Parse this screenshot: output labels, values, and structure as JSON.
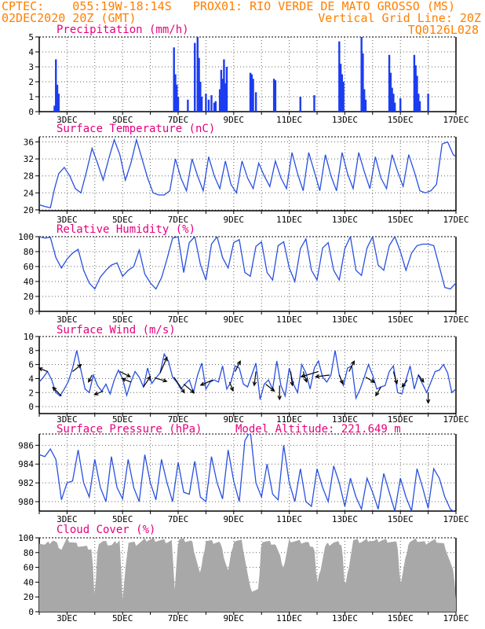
{
  "header": {
    "line1_left": "CPTEC:    055:19W-18:14S   PROX01: RIO VERDE DE MATO GROSSO (MS)",
    "line2_left": "02DEC2020 20Z (GMT)",
    "line2_right": "Vertical Grid Line: 20Z",
    "line3_right": "TQ0126L028"
  },
  "colors": {
    "header": "#ff7f00",
    "title": "#e6007e",
    "series": "#2850e0",
    "bars": "#1c3cf0",
    "cloud": "#a8a8a8",
    "arrows": "#000000"
  },
  "date_ticks": [
    "3DEC",
    "5DEC",
    "7DEC",
    "9DEC",
    "11DEC",
    "13DEC",
    "15DEC",
    "17DEC"
  ],
  "chart_data": [
    {
      "id": "precip",
      "type": "bar",
      "title": "Precipitation (mm/h)",
      "ylim": [
        0,
        5
      ],
      "yticks": [
        "0",
        "1",
        "2",
        "3",
        "4",
        "5"
      ],
      "xlim": [
        2.0,
        17.0
      ],
      "x": [
        2.55,
        2.6,
        2.65,
        2.7,
        6.85,
        6.9,
        6.95,
        7.0,
        7.35,
        7.6,
        7.7,
        7.75,
        7.8,
        7.85,
        8.0,
        8.1,
        8.2,
        8.3,
        8.35,
        8.5,
        8.55,
        8.6,
        8.65,
        8.7,
        8.75,
        9.6,
        9.65,
        9.7,
        9.8,
        10.45,
        10.5,
        11.4,
        11.9,
        12.8,
        12.85,
        12.9,
        12.95,
        13.6,
        13.65,
        13.7,
        13.75,
        14.6,
        14.65,
        14.7,
        14.75,
        14.8,
        15.0,
        15.5,
        15.55,
        15.6,
        15.65,
        15.7,
        16.0
      ],
      "values": [
        0.4,
        3.5,
        1.8,
        1.2,
        4.3,
        2.5,
        1.8,
        1.0,
        0.8,
        4.6,
        5.0,
        3.6,
        2.0,
        1.0,
        1.2,
        0.8,
        1.1,
        0.6,
        0.7,
        1.5,
        2.8,
        2.2,
        3.5,
        1.9,
        3.0,
        2.6,
        2.5,
        2.2,
        1.3,
        2.2,
        2.1,
        1.0,
        1.1,
        4.7,
        3.2,
        2.5,
        2.0,
        5.0,
        3.9,
        1.5,
        0.8,
        3.8,
        2.6,
        1.6,
        1.2,
        0.6,
        0.9,
        3.8,
        3.1,
        2.4,
        1.2,
        0.7,
        1.2
      ]
    },
    {
      "id": "temp",
      "type": "line",
      "title": "Surface Temperature (nC)",
      "ylim": [
        19.8,
        37.2
      ],
      "yticks": [
        "20",
        "24",
        "28",
        "32",
        "36"
      ],
      "xlim": [
        2.0,
        17.0
      ],
      "x": [
        2.0,
        2.2,
        2.4,
        2.55,
        2.7,
        2.9,
        3.1,
        3.3,
        3.5,
        3.7,
        3.9,
        4.1,
        4.3,
        4.5,
        4.7,
        4.9,
        5.1,
        5.3,
        5.5,
        5.7,
        5.9,
        6.1,
        6.3,
        6.5,
        6.7,
        6.9,
        7.1,
        7.3,
        7.5,
        7.7,
        7.9,
        8.1,
        8.3,
        8.5,
        8.7,
        8.9,
        9.1,
        9.3,
        9.5,
        9.7,
        9.9,
        10.1,
        10.3,
        10.5,
        10.7,
        10.9,
        11.1,
        11.3,
        11.5,
        11.7,
        11.9,
        12.1,
        12.3,
        12.5,
        12.7,
        12.9,
        13.1,
        13.3,
        13.5,
        13.7,
        13.9,
        14.1,
        14.3,
        14.5,
        14.7,
        14.9,
        15.1,
        15.3,
        15.5,
        15.7,
        15.9,
        16.1,
        16.3,
        16.5,
        16.7,
        16.9,
        17.0
      ],
      "values": [
        21.2,
        20.8,
        20.5,
        25.0,
        28.5,
        30.0,
        28.0,
        25.0,
        24.0,
        29.0,
        34.5,
        31.0,
        27.0,
        32.0,
        36.5,
        33.0,
        27.0,
        31.0,
        36.5,
        32.0,
        27.5,
        24.0,
        23.5,
        23.5,
        24.5,
        32.0,
        27.5,
        24.5,
        32.0,
        28.0,
        24.5,
        32.5,
        28.0,
        25.0,
        31.5,
        26.0,
        24.0,
        31.5,
        27.5,
        25.0,
        31.0,
        28.0,
        25.5,
        31.5,
        27.5,
        25.0,
        33.5,
        28.5,
        24.5,
        33.5,
        29.0,
        24.5,
        33.0,
        28.0,
        24.5,
        33.5,
        28.5,
        25.0,
        33.5,
        29.0,
        25.0,
        32.5,
        27.5,
        25.0,
        33.0,
        29.0,
        25.5,
        33.0,
        29.0,
        24.5,
        24.0,
        24.5,
        26.0,
        35.5,
        36.0,
        33.0,
        32.5
      ]
    },
    {
      "id": "rh",
      "type": "line",
      "title": "Relative Humidity (%)",
      "ylim": [
        0,
        100
      ],
      "yticks": [
        "0",
        "20",
        "40",
        "60",
        "80",
        "100"
      ],
      "xlim": [
        2.0,
        17.0
      ],
      "x": [
        2.0,
        2.2,
        2.4,
        2.6,
        2.8,
        3.0,
        3.2,
        3.4,
        3.6,
        3.8,
        4.0,
        4.2,
        4.4,
        4.6,
        4.8,
        5.0,
        5.2,
        5.4,
        5.6,
        5.8,
        6.0,
        6.2,
        6.4,
        6.6,
        6.8,
        7.0,
        7.2,
        7.4,
        7.6,
        7.8,
        8.0,
        8.2,
        8.4,
        8.6,
        8.8,
        9.0,
        9.2,
        9.4,
        9.6,
        9.8,
        10.0,
        10.2,
        10.4,
        10.6,
        10.8,
        11.0,
        11.2,
        11.4,
        11.6,
        11.8,
        12.0,
        12.2,
        12.4,
        12.6,
        12.8,
        13.0,
        13.2,
        13.4,
        13.6,
        13.8,
        14.0,
        14.2,
        14.4,
        14.6,
        14.8,
        15.0,
        15.2,
        15.4,
        15.6,
        15.8,
        16.0,
        16.2,
        16.4,
        16.6,
        16.8,
        17.0
      ],
      "values": [
        100,
        98,
        99,
        72,
        58,
        70,
        78,
        83,
        55,
        38,
        30,
        46,
        55,
        62,
        65,
        47,
        55,
        60,
        82,
        50,
        38,
        30,
        45,
        70,
        98,
        100,
        52,
        92,
        100,
        63,
        42,
        90,
        100,
        72,
        58,
        92,
        96,
        52,
        47,
        87,
        93,
        52,
        42,
        88,
        93,
        58,
        40,
        84,
        97,
        55,
        42,
        85,
        92,
        55,
        42,
        84,
        100,
        55,
        48,
        85,
        100,
        62,
        55,
        88,
        100,
        80,
        55,
        78,
        88,
        90,
        90,
        88,
        60,
        32,
        30,
        38
      ]
    },
    {
      "id": "wind",
      "type": "line",
      "title": "Surface Wind (m/s)",
      "ylim": [
        -1,
        10
      ],
      "yticks": [
        "0",
        "2",
        "4",
        "6",
        "8",
        "10"
      ],
      "xlim": [
        2.0,
        17.0
      ],
      "x": [
        2.0,
        2.15,
        2.3,
        2.45,
        2.6,
        2.75,
        2.9,
        3.05,
        3.2,
        3.35,
        3.5,
        3.65,
        3.8,
        3.95,
        4.1,
        4.25,
        4.4,
        4.55,
        4.7,
        4.85,
        5.0,
        5.15,
        5.3,
        5.45,
        5.6,
        5.75,
        5.9,
        6.05,
        6.2,
        6.35,
        6.5,
        6.65,
        6.8,
        6.95,
        7.1,
        7.25,
        7.4,
        7.55,
        7.7,
        7.85,
        8.0,
        8.15,
        8.3,
        8.45,
        8.6,
        8.75,
        8.9,
        9.05,
        9.2,
        9.35,
        9.5,
        9.65,
        9.8,
        9.95,
        10.1,
        10.25,
        10.4,
        10.55,
        10.7,
        10.85,
        11.0,
        11.15,
        11.3,
        11.45,
        11.6,
        11.75,
        11.9,
        12.05,
        12.2,
        12.35,
        12.5,
        12.65,
        12.8,
        12.95,
        13.1,
        13.25,
        13.4,
        13.55,
        13.7,
        13.85,
        14.0,
        14.15,
        14.3,
        14.45,
        14.6,
        14.75,
        14.9,
        15.05,
        15.2,
        15.35,
        15.5,
        15.65,
        15.8,
        15.95,
        16.1,
        16.25,
        16.4,
        16.55,
        16.7,
        16.85,
        17.0
      ],
      "values": [
        3.5,
        4.2,
        5.0,
        3.8,
        2.0,
        1.5,
        2.5,
        3.6,
        5.5,
        8.0,
        5.2,
        2.5,
        2.0,
        4.5,
        3.0,
        2.2,
        3.2,
        1.8,
        3.8,
        5.2,
        4.0,
        1.6,
        3.5,
        5.0,
        4.2,
        2.8,
        5.5,
        3.3,
        4.1,
        4.8,
        7.5,
        6.5,
        4.2,
        3.5,
        2.5,
        3.2,
        3.8,
        2.0,
        4.5,
        6.2,
        2.5,
        3.5,
        3.8,
        3.5,
        5.8,
        2.5,
        3.5,
        5.8,
        5.5,
        3.2,
        2.8,
        4.5,
        6.2,
        1.0,
        3.2,
        3.8,
        2.5,
        6.5,
        3.0,
        1.5,
        5.5,
        3.2,
        2.0,
        6.0,
        4.8,
        2.5,
        5.5,
        6.5,
        4.2,
        3.5,
        4.5,
        8.0,
        4.5,
        3.0,
        5.5,
        5.8,
        1.2,
        2.5,
        4.2,
        6.0,
        4.5,
        2.5,
        2.8,
        3.0,
        5.0,
        5.8,
        2.0,
        1.8,
        3.8,
        5.8,
        2.5,
        4.5,
        3.2,
        2.0,
        3.5,
        5.0,
        5.2,
        6.0,
        4.8,
        2.0,
        2.5
      ],
      "arrows": [
        {
          "x": 2.3,
          "u": -0.5,
          "v": 0.2
        },
        {
          "x": 2.8,
          "u": -0.5,
          "v": 0.5
        },
        {
          "x": 3.2,
          "u": 0.5,
          "v": 0.4
        },
        {
          "x": 3.9,
          "u": -0.2,
          "v": -0.4
        },
        {
          "x": 4.3,
          "u": -0.5,
          "v": -0.2
        },
        {
          "x": 4.9,
          "u": 0.6,
          "v": -0.3
        },
        {
          "x": 5.3,
          "u": -0.5,
          "v": 0.2
        },
        {
          "x": 5.75,
          "u": 0.4,
          "v": 0.6
        },
        {
          "x": 6.15,
          "u": 0.7,
          "v": -0.2
        },
        {
          "x": 6.35,
          "u": 0.4,
          "v": 0.9
        },
        {
          "x": 6.85,
          "u": 0.6,
          "v": -0.9
        },
        {
          "x": 7.2,
          "u": 0.6,
          "v": -0.5
        },
        {
          "x": 8.25,
          "u": -0.7,
          "v": -0.3
        },
        {
          "x": 8.85,
          "u": 0.2,
          "v": -0.5
        },
        {
          "x": 9.05,
          "u": 0.3,
          "v": 0.6
        },
        {
          "x": 9.8,
          "u": -0.1,
          "v": -0.8
        },
        {
          "x": 10.15,
          "u": 0.5,
          "v": -0.4
        },
        {
          "x": 10.65,
          "u": 0.0,
          "v": -0.8
        },
        {
          "x": 11.05,
          "u": 0.1,
          "v": -0.8
        },
        {
          "x": 11.5,
          "u": 0.2,
          "v": -0.6
        },
        {
          "x": 12.05,
          "u": -1.0,
          "v": -0.3
        },
        {
          "x": 12.45,
          "u": -0.8,
          "v": -0.1
        },
        {
          "x": 12.8,
          "u": 0.2,
          "v": -0.5
        },
        {
          "x": 13.15,
          "u": 0.3,
          "v": 0.6
        },
        {
          "x": 13.75,
          "u": 0.5,
          "v": -0.3
        },
        {
          "x": 14.3,
          "u": -0.3,
          "v": -0.5
        },
        {
          "x": 14.75,
          "u": 0.2,
          "v": -0.7
        },
        {
          "x": 15.25,
          "u": -0.3,
          "v": -0.4
        },
        {
          "x": 15.65,
          "u": 0.3,
          "v": -0.4
        },
        {
          "x": 16.0,
          "u": 0.0,
          "v": -0.6
        }
      ]
    },
    {
      "id": "pressure",
      "type": "line",
      "title": "Surface Pressure (hPa)",
      "extra_label": "Model Altitude: 221.649 m",
      "ylim": [
        979,
        987.2
      ],
      "yticks": [
        "980",
        "982",
        "984",
        "986"
      ],
      "xlim": [
        2.0,
        17.0
      ],
      "x": [
        2.0,
        2.2,
        2.4,
        2.6,
        2.8,
        3.0,
        3.2,
        3.4,
        3.6,
        3.8,
        4.0,
        4.2,
        4.4,
        4.6,
        4.8,
        5.0,
        5.2,
        5.4,
        5.6,
        5.8,
        6.0,
        6.2,
        6.4,
        6.6,
        6.8,
        7.0,
        7.2,
        7.4,
        7.6,
        7.8,
        8.0,
        8.2,
        8.4,
        8.6,
        8.8,
        9.0,
        9.2,
        9.4,
        9.6,
        9.8,
        10.0,
        10.2,
        10.4,
        10.6,
        10.8,
        11.0,
        11.2,
        11.4,
        11.6,
        11.8,
        12.0,
        12.2,
        12.4,
        12.6,
        12.8,
        13.0,
        13.2,
        13.4,
        13.6,
        13.8,
        14.0,
        14.2,
        14.4,
        14.6,
        14.8,
        15.0,
        15.2,
        15.4,
        15.6,
        15.8,
        16.0,
        16.2,
        16.4,
        16.6,
        16.8,
        17.0
      ],
      "values": [
        985.0,
        984.8,
        985.6,
        984.5,
        980.2,
        982.0,
        982.2,
        985.5,
        982.0,
        980.5,
        984.5,
        981.5,
        980.0,
        984.8,
        981.5,
        980.3,
        984.5,
        981.5,
        980.0,
        985.0,
        982.0,
        980.2,
        984.5,
        982.0,
        980.0,
        984.2,
        981.0,
        980.8,
        984.3,
        980.5,
        980.0,
        984.8,
        982.0,
        980.3,
        985.5,
        982.2,
        980.0,
        986.5,
        987.5,
        982.0,
        980.5,
        984.0,
        980.8,
        980.2,
        986.0,
        982.0,
        980.0,
        983.5,
        980.0,
        979.5,
        983.5,
        981.5,
        980.0,
        983.8,
        982.0,
        979.5,
        982.5,
        980.5,
        979.2,
        982.5,
        981.0,
        979.2,
        983.0,
        981.0,
        979.0,
        982.5,
        980.5,
        979.0,
        983.5,
        981.5,
        979.3,
        983.5,
        982.5,
        980.5,
        979.2,
        978.8
      ]
    },
    {
      "id": "cloud",
      "type": "area",
      "title": "Cloud Cover (%)",
      "ylim": [
        0,
        100
      ],
      "yticks": [
        "0",
        "20",
        "40",
        "60",
        "80",
        "100"
      ],
      "xlim": [
        2.0,
        17.0
      ],
      "x": [
        2.0,
        2.2,
        2.5,
        2.8,
        3.0,
        3.3,
        3.6,
        3.9,
        4.0,
        4.1,
        4.3,
        4.6,
        4.9,
        5.0,
        5.2,
        5.5,
        5.8,
        6.0,
        6.3,
        6.6,
        6.8,
        6.85,
        7.0,
        7.2,
        7.5,
        7.8,
        8.0,
        8.2,
        8.5,
        8.8,
        9.0,
        9.3,
        9.6,
        9.9,
        10.0,
        10.2,
        10.5,
        10.8,
        11.0,
        11.3,
        11.6,
        11.9,
        12.0,
        12.3,
        12.6,
        12.9,
        13.0,
        13.3,
        13.6,
        13.9,
        14.0,
        14.3,
        14.6,
        14.9,
        15.0,
        15.3,
        15.6,
        15.9,
        16.0,
        16.3,
        16.6,
        16.9,
        17.0
      ],
      "values": [
        95,
        90,
        97,
        85,
        98,
        92,
        88,
        85,
        10,
        93,
        95,
        90,
        98,
        15,
        95,
        92,
        97,
        98,
        97,
        95,
        96,
        20,
        98,
        97,
        95,
        50,
        97,
        95,
        94,
        55,
        97,
        95,
        30,
        30,
        97,
        95,
        92,
        60,
        97,
        95,
        94,
        88,
        35,
        90,
        94,
        92,
        30,
        97,
        95,
        98,
        95,
        97,
        96,
        92,
        35,
        95,
        97,
        93,
        95,
        96,
        90,
        55,
        20
      ]
    }
  ]
}
